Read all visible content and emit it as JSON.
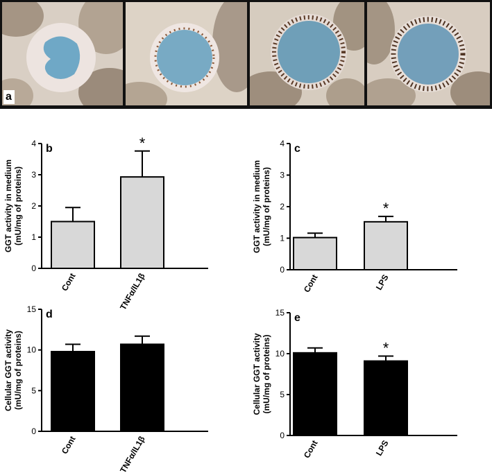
{
  "figure": {
    "panel_a_label": "a"
  },
  "chart_data": [
    {
      "id": "b",
      "type": "bar",
      "panel_label": "b",
      "categories": [
        "Cont",
        "TNFα/IL1β"
      ],
      "values": [
        1.5,
        2.93
      ],
      "errors": [
        0.45,
        0.83
      ],
      "significance": [
        "",
        "*"
      ],
      "ylabel": "GGT activity in medium",
      "ylabel2": "(mU/mg of proteins)",
      "ylim": [
        0,
        4
      ],
      "yticks": [
        0,
        1,
        2,
        3,
        4
      ],
      "fill": "#d8d8d8"
    },
    {
      "id": "c",
      "type": "bar",
      "panel_label": "c",
      "categories": [
        "Cont",
        "LPS"
      ],
      "values": [
        1.02,
        1.52
      ],
      "errors": [
        0.14,
        0.17
      ],
      "significance": [
        "",
        "*"
      ],
      "ylabel": "GGT activity in medium",
      "ylabel2": "(mU/mg of proteins)",
      "ylim": [
        0,
        4
      ],
      "yticks": [
        0,
        1,
        2,
        3,
        4
      ],
      "fill": "#d8d8d8"
    },
    {
      "id": "d",
      "type": "bar",
      "panel_label": "d",
      "categories": [
        "Cont",
        "TNFα/IL1β"
      ],
      "values": [
        9.8,
        10.7
      ],
      "errors": [
        0.9,
        1.0
      ],
      "significance": [
        "",
        ""
      ],
      "ylabel": "Cellular GGT activity",
      "ylabel2": "(mU/mg of proteins)",
      "ylim": [
        0,
        15
      ],
      "yticks": [
        0,
        5,
        10,
        15
      ],
      "fill": "#000000"
    },
    {
      "id": "e",
      "type": "bar",
      "panel_label": "e",
      "categories": [
        "Cont",
        "LPS"
      ],
      "values": [
        10.1,
        9.1
      ],
      "errors": [
        0.6,
        0.6
      ],
      "significance": [
        "",
        "*"
      ],
      "ylabel": "Cellular GGT activity",
      "ylabel2": "(mU/mg of proteins)",
      "ylim": [
        0,
        15
      ],
      "yticks": [
        0,
        5,
        10,
        15
      ],
      "fill": "#000000"
    }
  ]
}
